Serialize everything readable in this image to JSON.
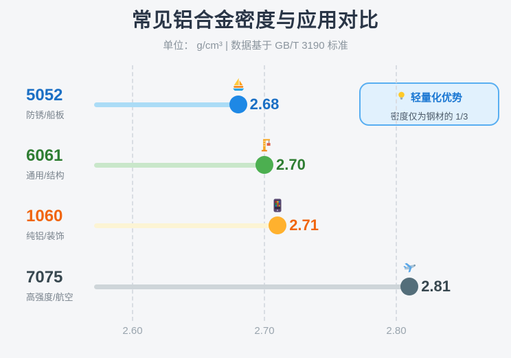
{
  "page": {
    "title": "常见铝合金密度与应用对比",
    "subtitle": "单位： g/cm³ | 数据基于 GB/T 3190 标准"
  },
  "callout": {
    "icon": "lightbulb-icon",
    "title": "轻量化优势",
    "text": "密度仅为钢材的 1/3"
  },
  "colors": {
    "background": "#f5f6f8",
    "title_text": "#2a3647",
    "subtitle_text": "#8b959e",
    "gridline": "#d9dde3",
    "tick_label": "#9aa5ae",
    "callout_bg": "#e1f1fd",
    "callout_border": "#58aef1",
    "callout_title": "#1976d2",
    "callout_text": "#4b5a68"
  },
  "chart_data": {
    "type": "scatter",
    "variant": "horizontal-dot-plot",
    "title": "常见铝合金密度与应用对比",
    "subtitle": "单位： g/cm³ | 数据基于 GB/T 3190 标准",
    "x_ticks": [
      "2.60",
      "2.70",
      "2.80"
    ],
    "x_tick_values": [
      2.6,
      2.7,
      2.8
    ],
    "xlim": [
      2.57,
      2.887
    ],
    "grid": "dashed-vertical",
    "legend": "none",
    "rows": [
      {
        "alloy": "5052",
        "use": "防锈/船板",
        "density": 2.68,
        "density_label": "2.68",
        "icon": "sailboat-icon",
        "color": "#1a6fc4",
        "dot_color": "#1e88e5",
        "track_color": "#abdcf6"
      },
      {
        "alloy": "6061",
        "use": "通用/结构",
        "density": 2.7,
        "density_label": "2.70",
        "icon": "crane-icon",
        "color": "#2e7d32",
        "dot_color": "#4caf50",
        "track_color": "#c9e7ca"
      },
      {
        "alloy": "1060",
        "use": "纯铝/装饰",
        "density": 2.71,
        "density_label": "2.71",
        "icon": "phone-icon",
        "color": "#f0650f",
        "dot_color": "#ffb12e",
        "track_color": "#fcf4d4"
      },
      {
        "alloy": "7075",
        "use": "高强度/航空",
        "density": 2.81,
        "density_label": "2.81",
        "icon": "plane-icon",
        "color": "#37474f",
        "dot_color": "#546e7a",
        "track_color": "#ced5d9"
      }
    ]
  }
}
